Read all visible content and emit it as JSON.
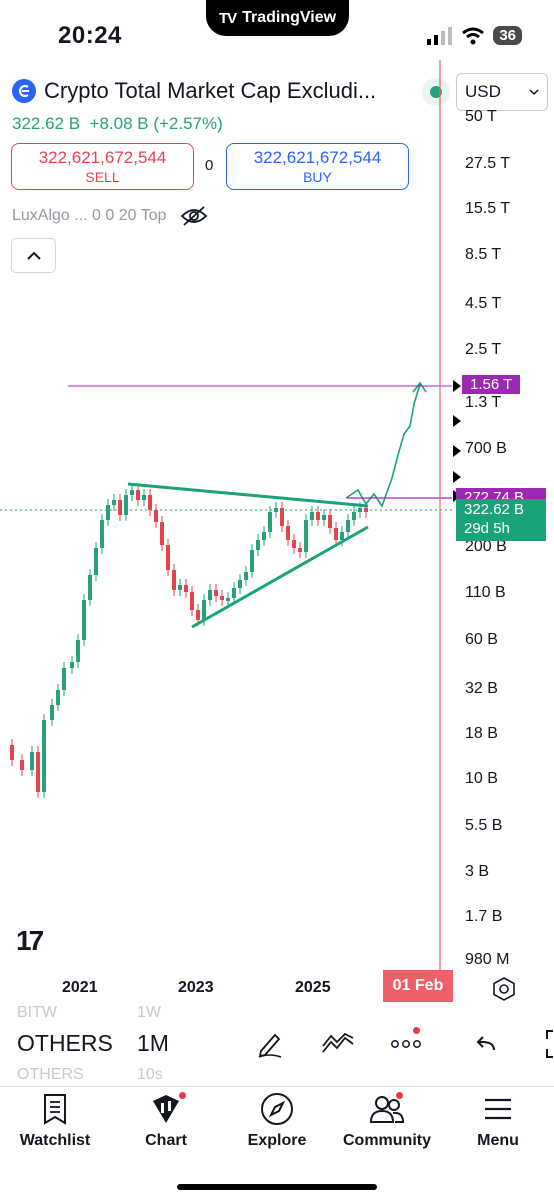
{
  "status_bar": {
    "time": "20:24",
    "app_name": "TradingView",
    "battery": "36"
  },
  "symbol": {
    "title": "Crypto Total Market Cap Excludi...",
    "price": "322.62 B",
    "change": "+8.08 B (+2.57%)",
    "currency": "USD"
  },
  "quote": {
    "sell_value": "322,621,672,544",
    "sell_label": "SELL",
    "spread": "0",
    "buy_value": "322,621,672,544",
    "buy_label": "BUY"
  },
  "indicator": {
    "label": "LuxAlgo ... 0 0 20 Top"
  },
  "price_axis": {
    "labels": [
      "50 T",
      "27.5 T",
      "15.5 T",
      "8.5 T",
      "4.5 T",
      "2.5 T",
      "1.3 T",
      "700 B",
      "200 B",
      "110 B",
      "60 B",
      "32 B",
      "18 B",
      "10 B",
      "5.5 B",
      "3 B",
      "1.7 B",
      "980 M"
    ]
  },
  "price_tags": {
    "target": "1.56 T",
    "level": "272.74 B",
    "current_price": "322.62 B",
    "countdown": "29d 5h"
  },
  "time_axis": {
    "labels": [
      "2021",
      "2023",
      "2025"
    ],
    "cursor_date": "01 Feb"
  },
  "toolbar": {
    "prev_symbol": "BITW",
    "prev_timeframe": "1W",
    "symbol": "OTHERS",
    "timeframe": "1M",
    "next_symbol": "OTHERS",
    "next_timeframe": "10s"
  },
  "tabs": [
    {
      "label": "Watchlist"
    },
    {
      "label": "Chart"
    },
    {
      "label": "Explore"
    },
    {
      "label": "Community"
    },
    {
      "label": "Menu"
    }
  ],
  "colors": {
    "up": "#26a17b",
    "down": "#e5434e",
    "buy": "#2962ff",
    "purple_level": "#9c27b0",
    "cursor_line": "#f0606b"
  }
}
